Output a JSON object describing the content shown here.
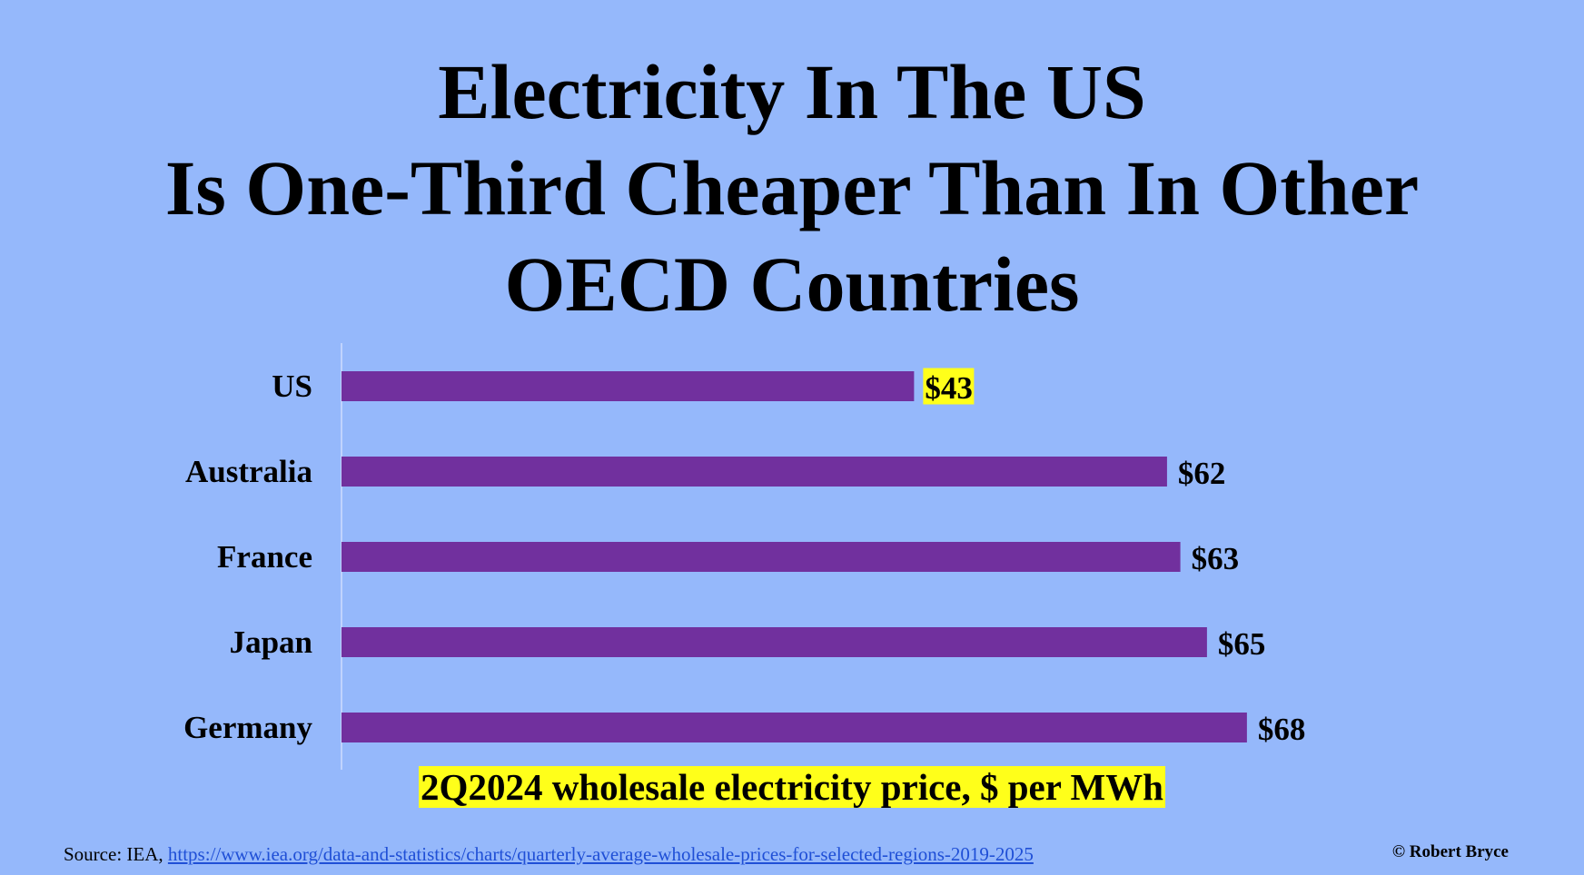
{
  "title_lines": [
    "Electricity In The US",
    "Is One-Third Cheaper Than In Other",
    "OECD Countries"
  ],
  "source": {
    "prefix": "Source: IEA,",
    "link_text": "https://www.iea.org/data-and-statistics/charts/quarterly-average-wholesale-prices-for-selected-regions-2019-2025"
  },
  "credit": "© Robert Bryce",
  "colors": {
    "background": "#95b8fb",
    "bar": "#71309e",
    "highlight": "#ffff1a",
    "axis_line": "#cfdcff"
  },
  "chart_data": {
    "type": "bar",
    "orientation": "horizontal",
    "categories": [
      "US",
      "Australia",
      "France",
      "Japan",
      "Germany"
    ],
    "values": [
      43,
      62,
      63,
      65,
      68
    ],
    "value_labels": [
      "$43",
      "$62",
      "$63",
      "$65",
      "$68"
    ],
    "highlighted_category": "US",
    "xlabel": "2Q2024 wholesale electricity price, $ per MWh",
    "xlim": [
      0,
      100
    ],
    "grid": false,
    "legend": "none"
  }
}
